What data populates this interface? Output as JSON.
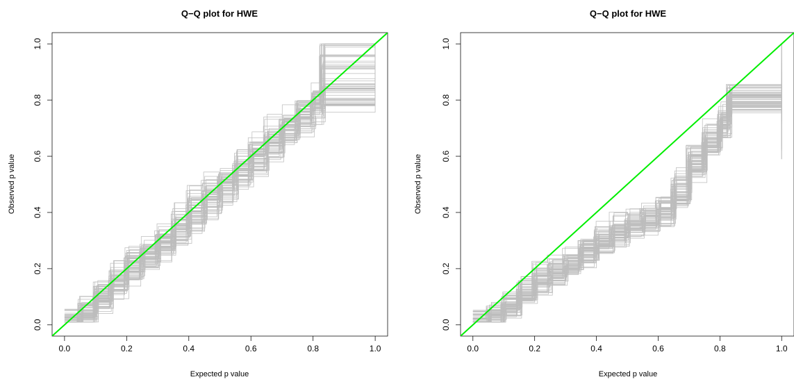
{
  "chart_data": [
    {
      "type": "line",
      "title": "Q−Q plot for HWE",
      "xlabel": "Expected p value",
      "ylabel": "Observed p value",
      "xlim": [
        -0.04,
        1.04
      ],
      "ylim": [
        -0.04,
        1.04
      ],
      "xticks": [
        "0.0",
        "0.2",
        "0.4",
        "0.6",
        "0.8",
        "1.0"
      ],
      "yticks": [
        "0.0",
        "0.2",
        "0.4",
        "0.6",
        "0.8",
        "1.0"
      ],
      "reference_line": {
        "color": "#00ee00",
        "intercept": 0,
        "slope": 1
      },
      "series_color": "#bdbdbd",
      "replicates": 60,
      "x": [
        0.0,
        0.05,
        0.1,
        0.15,
        0.2,
        0.25,
        0.3,
        0.35,
        0.4,
        0.45,
        0.5,
        0.55,
        0.6,
        0.65,
        0.7,
        0.75,
        0.8,
        0.83,
        1.0
      ],
      "series": [
        {
          "values": [
            0.02,
            0.05,
            0.11,
            0.16,
            0.22,
            0.26,
            0.3,
            0.35,
            0.41,
            0.46,
            0.51,
            0.56,
            0.62,
            0.66,
            0.71,
            0.76,
            0.8,
            0.85,
            1.0
          ]
        },
        {
          "values": [
            0.0,
            0.03,
            0.08,
            0.14,
            0.19,
            0.24,
            0.29,
            0.33,
            0.38,
            0.44,
            0.49,
            0.53,
            0.58,
            0.63,
            0.69,
            0.73,
            0.78,
            0.81,
            0.82
          ]
        },
        {
          "values": [
            0.03,
            0.07,
            0.13,
            0.18,
            0.25,
            0.28,
            0.32,
            0.4,
            0.46,
            0.5,
            0.53,
            0.59,
            0.64,
            0.7,
            0.74,
            0.79,
            0.82,
            1.0,
            1.0
          ]
        },
        {
          "values": [
            0.01,
            0.04,
            0.09,
            0.13,
            0.18,
            0.23,
            0.27,
            0.31,
            0.37,
            0.42,
            0.47,
            0.52,
            0.56,
            0.61,
            0.66,
            0.71,
            0.75,
            0.79,
            0.78
          ]
        },
        {
          "values": [
            0.02,
            0.06,
            0.12,
            0.17,
            0.23,
            0.27,
            0.31,
            0.37,
            0.44,
            0.48,
            0.52,
            0.58,
            0.63,
            0.67,
            0.72,
            0.77,
            0.81,
            0.92,
            1.0
          ]
        }
      ]
    },
    {
      "type": "line",
      "title": "Q−Q plot for HWE",
      "xlabel": "Expected p value",
      "ylabel": "Observed p value",
      "xlim": [
        -0.04,
        1.04
      ],
      "ylim": [
        -0.04,
        1.04
      ],
      "xticks": [
        "0.0",
        "0.2",
        "0.4",
        "0.6",
        "0.8",
        "1.0"
      ],
      "yticks": [
        "0.0",
        "0.2",
        "0.4",
        "0.6",
        "0.8",
        "1.0"
      ],
      "reference_line": {
        "color": "#00ee00",
        "intercept": 0,
        "slope": 1
      },
      "series_color": "#bdbdbd",
      "replicates": 60,
      "x": [
        0.0,
        0.05,
        0.1,
        0.15,
        0.2,
        0.25,
        0.3,
        0.35,
        0.4,
        0.45,
        0.5,
        0.55,
        0.6,
        0.65,
        0.7,
        0.75,
        0.8,
        0.83,
        1.0
      ],
      "series": [
        {
          "values": [
            0.01,
            0.03,
            0.07,
            0.12,
            0.17,
            0.19,
            0.22,
            0.26,
            0.3,
            0.33,
            0.36,
            0.38,
            0.4,
            0.47,
            0.58,
            0.65,
            0.72,
            0.82,
            0.82
          ]
        },
        {
          "values": [
            0.0,
            0.02,
            0.05,
            0.1,
            0.14,
            0.17,
            0.2,
            0.24,
            0.28,
            0.31,
            0.34,
            0.36,
            0.39,
            0.44,
            0.54,
            0.62,
            0.69,
            0.78,
            0.8
          ]
        },
        {
          "values": [
            0.02,
            0.05,
            0.09,
            0.14,
            0.19,
            0.21,
            0.24,
            0.29,
            0.33,
            0.36,
            0.38,
            0.41,
            0.44,
            0.52,
            0.62,
            0.69,
            0.76,
            0.83,
            1.0
          ]
        },
        {
          "values": [
            0.01,
            0.02,
            0.06,
            0.11,
            0.15,
            0.18,
            0.21,
            0.25,
            0.29,
            0.32,
            0.35,
            0.37,
            0.39,
            0.45,
            0.56,
            0.63,
            0.7,
            0.8,
            0.72
          ]
        },
        {
          "values": [
            0.01,
            0.03,
            0.08,
            0.13,
            0.18,
            0.2,
            0.23,
            0.27,
            0.31,
            0.34,
            0.37,
            0.39,
            0.42,
            0.49,
            0.6,
            0.67,
            0.74,
            0.81,
            0.64
          ]
        }
      ]
    }
  ]
}
